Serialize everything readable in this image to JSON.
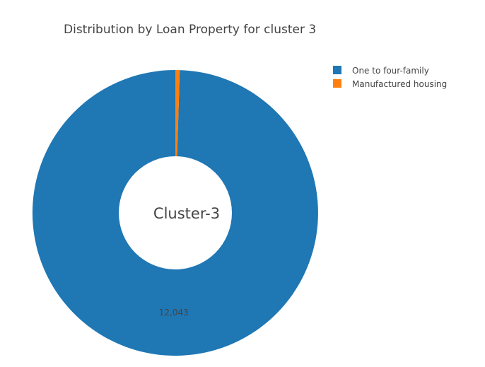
{
  "chart_data": {
    "type": "pie",
    "title": "Distribution by Loan Property for cluster 3",
    "center_label": "Cluster-3",
    "hole": true,
    "legend_position": "top-right",
    "slices": [
      {
        "label": "One to four-family",
        "value": 12043,
        "value_label": "12,043",
        "color": "#1f77b4"
      },
      {
        "label": "Manufactured housing",
        "value": 60,
        "value_label": "",
        "color": "#ff7f0e"
      }
    ]
  }
}
